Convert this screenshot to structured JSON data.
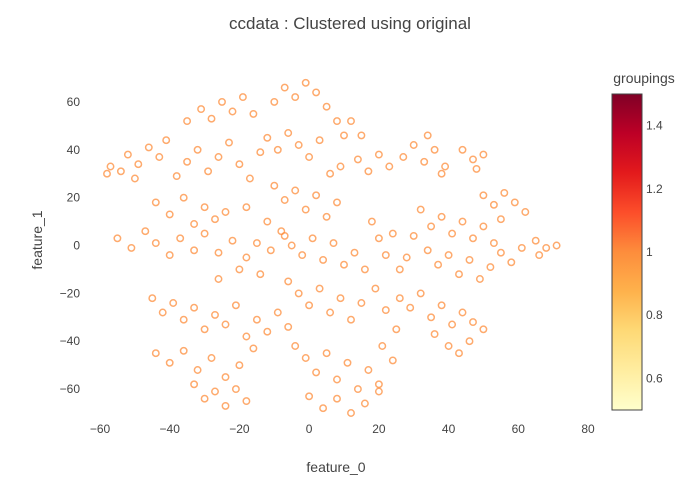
{
  "chart_data": {
    "type": "scatter",
    "title": "ccdata : Clustered using original",
    "xlabel": "feature_0",
    "ylabel": "feature_1",
    "xlim": [
      -60,
      80
    ],
    "ylim": [
      -75,
      70
    ],
    "xticks": [
      -60,
      -40,
      -20,
      0,
      20,
      40,
      60,
      80
    ],
    "yticks": [
      -60,
      -40,
      -20,
      0,
      20,
      40,
      60
    ],
    "grid": false,
    "marker": "open-circle",
    "marker_color": "#fd8d3c",
    "colorbar": {
      "title": "groupings",
      "range": [
        0.5,
        1.5
      ],
      "ticks": [
        0.6,
        0.8,
        1,
        1.2,
        1.4
      ],
      "colorscale": [
        "#ffffcc",
        "#ffeda0",
        "#fed976",
        "#feb24c",
        "#fd8d3c",
        "#fc4e2a",
        "#e31a1c",
        "#bd0026",
        "#800026"
      ]
    },
    "series": [
      {
        "group_value": 1,
        "points": [
          [
            -57,
            33
          ],
          [
            -54,
            31
          ],
          [
            -52,
            38
          ],
          [
            -49,
            34
          ],
          [
            -46,
            41
          ],
          [
            -43,
            37
          ],
          [
            -41,
            44
          ],
          [
            -38,
            29
          ],
          [
            -35,
            35
          ],
          [
            -32,
            40
          ],
          [
            -29,
            31
          ],
          [
            -26,
            37
          ],
          [
            -23,
            43
          ],
          [
            -20,
            34
          ],
          [
            -17,
            28
          ],
          [
            -14,
            39
          ],
          [
            -44,
            18
          ],
          [
            -40,
            13
          ],
          [
            -36,
            20
          ],
          [
            -33,
            9
          ],
          [
            -30,
            16
          ],
          [
            -27,
            11
          ],
          [
            -55,
            3
          ],
          [
            -51,
            -1
          ],
          [
            -47,
            6
          ],
          [
            -44,
            1
          ],
          [
            -40,
            -4
          ],
          [
            -37,
            3
          ],
          [
            -33,
            -2
          ],
          [
            -30,
            5
          ],
          [
            -26,
            -3
          ],
          [
            -22,
            2
          ],
          [
            -18,
            -5
          ],
          [
            -15,
            1
          ],
          [
            -11,
            -2
          ],
          [
            -7,
            4
          ],
          [
            -45,
            -22
          ],
          [
            -42,
            -28
          ],
          [
            -39,
            -24
          ],
          [
            -36,
            -31
          ],
          [
            -33,
            -26
          ],
          [
            -30,
            -35
          ],
          [
            -27,
            -29
          ],
          [
            -24,
            -33
          ],
          [
            -21,
            -25
          ],
          [
            -18,
            -38
          ],
          [
            -15,
            -31
          ],
          [
            -12,
            -36
          ],
          [
            -9,
            -28
          ],
          [
            -6,
            -34
          ],
          [
            -44,
            -45
          ],
          [
            -40,
            -49
          ],
          [
            -36,
            -44
          ],
          [
            -32,
            -52
          ],
          [
            -28,
            -47
          ],
          [
            -24,
            -55
          ],
          [
            -20,
            -50
          ],
          [
            -16,
            -43
          ],
          [
            -33,
            -58
          ],
          [
            -30,
            -64
          ],
          [
            -27,
            -61
          ],
          [
            -24,
            -67
          ],
          [
            -21,
            -60
          ],
          [
            -18,
            -65
          ],
          [
            -35,
            52
          ],
          [
            -31,
            57
          ],
          [
            -28,
            53
          ],
          [
            -25,
            60
          ],
          [
            -22,
            56
          ],
          [
            -19,
            62
          ],
          [
            -16,
            55
          ],
          [
            -10,
            60
          ],
          [
            -7,
            66
          ],
          [
            -4,
            62
          ],
          [
            -1,
            68
          ],
          [
            2,
            64
          ],
          [
            5,
            58
          ],
          [
            8,
            52
          ],
          [
            10,
            46
          ],
          [
            -12,
            45
          ],
          [
            -9,
            40
          ],
          [
            -6,
            47
          ],
          [
            -3,
            42
          ],
          [
            0,
            37
          ],
          [
            3,
            44
          ],
          [
            -10,
            25
          ],
          [
            -7,
            19
          ],
          [
            -4,
            23
          ],
          [
            -1,
            15
          ],
          [
            2,
            21
          ],
          [
            5,
            12
          ],
          [
            8,
            18
          ],
          [
            -8,
            6
          ],
          [
            -5,
            0
          ],
          [
            -2,
            -4
          ],
          [
            1,
            3
          ],
          [
            4,
            -6
          ],
          [
            7,
            1
          ],
          [
            10,
            -8
          ],
          [
            13,
            -3
          ],
          [
            16,
            -10
          ],
          [
            -6,
            -15
          ],
          [
            -3,
            -20
          ],
          [
            0,
            -25
          ],
          [
            3,
            -18
          ],
          [
            6,
            -28
          ],
          [
            9,
            -22
          ],
          [
            12,
            -31
          ],
          [
            15,
            -24
          ],
          [
            -4,
            -42
          ],
          [
            -1,
            -47
          ],
          [
            2,
            -53
          ],
          [
            5,
            -45
          ],
          [
            8,
            -56
          ],
          [
            11,
            -49
          ],
          [
            14,
            -60
          ],
          [
            17,
            -52
          ],
          [
            20,
            -58
          ],
          [
            0,
            -63
          ],
          [
            4,
            -68
          ],
          [
            8,
            -64
          ],
          [
            12,
            -70
          ],
          [
            16,
            -66
          ],
          [
            20,
            -61
          ],
          [
            14,
            36
          ],
          [
            17,
            31
          ],
          [
            20,
            38
          ],
          [
            23,
            33
          ],
          [
            18,
            10
          ],
          [
            20,
            3
          ],
          [
            22,
            -4
          ],
          [
            24,
            5
          ],
          [
            26,
            -10
          ],
          [
            19,
            -18
          ],
          [
            22,
            -27
          ],
          [
            25,
            -35
          ],
          [
            21,
            -42
          ],
          [
            24,
            -48
          ],
          [
            27,
            37
          ],
          [
            30,
            42
          ],
          [
            33,
            35
          ],
          [
            36,
            40
          ],
          [
            39,
            33
          ],
          [
            34,
            46
          ],
          [
            38,
            30
          ],
          [
            44,
            40
          ],
          [
            47,
            36
          ],
          [
            50,
            38
          ],
          [
            48,
            32
          ],
          [
            50,
            21
          ],
          [
            53,
            17
          ],
          [
            56,
            22
          ],
          [
            59,
            18
          ],
          [
            62,
            14
          ],
          [
            55,
            11
          ],
          [
            32,
            15
          ],
          [
            35,
            8
          ],
          [
            38,
            12
          ],
          [
            41,
            5
          ],
          [
            44,
            10
          ],
          [
            47,
            3
          ],
          [
            50,
            8
          ],
          [
            53,
            1
          ],
          [
            34,
            -2
          ],
          [
            37,
            -8
          ],
          [
            40,
            -4
          ],
          [
            43,
            -12
          ],
          [
            46,
            -6
          ],
          [
            49,
            -14
          ],
          [
            52,
            -9
          ],
          [
            55,
            -3
          ],
          [
            58,
            -7
          ],
          [
            61,
            -1
          ],
          [
            65,
            2
          ],
          [
            68,
            -1
          ],
          [
            71,
            0
          ],
          [
            66,
            -4
          ],
          [
            26,
            -22
          ],
          [
            29,
            -26
          ],
          [
            32,
            -20
          ],
          [
            35,
            -30
          ],
          [
            38,
            -25
          ],
          [
            41,
            -33
          ],
          [
            36,
            -37
          ],
          [
            44,
            -28
          ],
          [
            47,
            -32
          ],
          [
            50,
            -35
          ],
          [
            40,
            -42
          ],
          [
            43,
            -45
          ],
          [
            46,
            -40
          ],
          [
            -58,
            30
          ],
          [
            -50,
            28
          ],
          [
            -18,
            16
          ],
          [
            -24,
            14
          ],
          [
            -12,
            10
          ],
          [
            15,
            46
          ],
          [
            12,
            52
          ],
          [
            28,
            -5
          ],
          [
            30,
            4
          ],
          [
            6,
            30
          ],
          [
            9,
            33
          ],
          [
            -14,
            -12
          ],
          [
            -20,
            -10
          ],
          [
            -26,
            -14
          ]
        ]
      }
    ]
  }
}
